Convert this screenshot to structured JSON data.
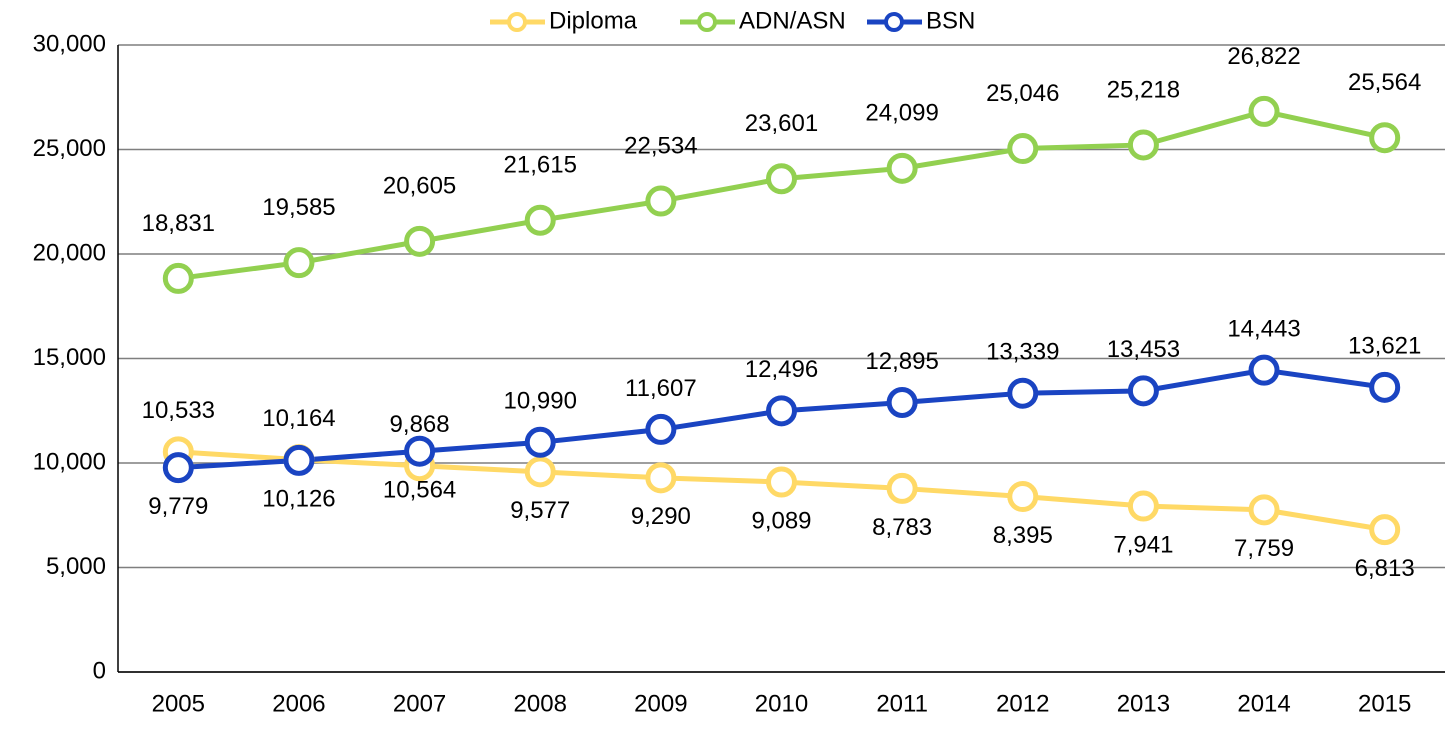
{
  "chart_data": {
    "type": "line",
    "categories": [
      "2005",
      "2006",
      "2007",
      "2008",
      "2009",
      "2010",
      "2011",
      "2012",
      "2013",
      "2014",
      "2015"
    ],
    "series": [
      {
        "name": "Diploma",
        "color": "#ffd966",
        "values": [
          10533,
          10164,
          9868,
          9577,
          9290,
          9089,
          8783,
          8395,
          7941,
          7759,
          6813
        ],
        "value_labels": [
          "10,533",
          "10,164",
          "9,868",
          "9,577",
          "9,290",
          "9,089",
          "8,783",
          "8,395",
          "7,941",
          "7,759",
          "6,813"
        ]
      },
      {
        "name": "ADN/ASN",
        "color": "#92d050",
        "values": [
          18831,
          19585,
          20605,
          21615,
          22534,
          23601,
          24099,
          25046,
          25218,
          26822,
          25564
        ],
        "value_labels": [
          "18,831",
          "19,585",
          "20,605",
          "21,615",
          "22,534",
          "23,601",
          "24,099",
          "25,046",
          "25,218",
          "26,822",
          "25,564"
        ]
      },
      {
        "name": "BSN",
        "color": "#1a44c2",
        "values": [
          9779,
          10126,
          10564,
          10990,
          11607,
          12496,
          12895,
          13339,
          13453,
          14443,
          13621
        ],
        "value_labels": [
          "9,779",
          "10,126",
          "10,564",
          "10,990",
          "11,607",
          "12,496",
          "12,895",
          "13,339",
          "13,453",
          "14,443",
          "13,621"
        ]
      }
    ],
    "ylim": [
      0,
      30000
    ],
    "yticks": [
      0,
      {
        "value": 5000,
        "label": "5,000"
      },
      {
        "value": 10000,
        "label": "10,000"
      },
      {
        "value": 15000,
        "label": "15,000"
      },
      {
        "value": 20000,
        "label": "20,000"
      },
      {
        "value": 25000,
        "label": "25,000"
      },
      {
        "value": 30000,
        "label": "30,000"
      }
    ],
    "grid": true,
    "legend": "top"
  }
}
